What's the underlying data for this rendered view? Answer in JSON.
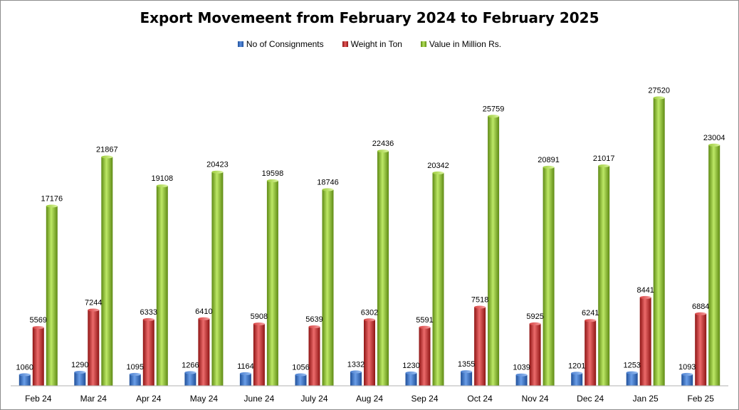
{
  "chart_data": {
    "type": "bar",
    "title": "Export Movemeent from February 2024 to February 2025",
    "xlabel": "",
    "ylabel": "",
    "legend_position": "top",
    "grid": false,
    "categories": [
      "Feb 24",
      "Mar 24",
      "Apr 24",
      "May 24",
      "June 24",
      "July 24",
      "Aug 24",
      "Sep 24",
      "Oct 24",
      "Nov 24",
      "Dec 24",
      "Jan 25",
      "Feb 25"
    ],
    "ylim": [
      0,
      28500
    ],
    "series": [
      {
        "name": "No of Consignments",
        "color": "#3a6fc4",
        "values": [
          1060,
          1290,
          1095,
          1266,
          1164,
          1056,
          1332,
          1230,
          1355,
          1039,
          1201,
          1253,
          1093
        ]
      },
      {
        "name": "Weight in Ton",
        "color": "#cc2a2a",
        "values": [
          5569,
          7244,
          6333,
          6410,
          5908,
          5639,
          6302,
          5591,
          7518,
          5925,
          6241,
          8441,
          6884
        ]
      },
      {
        "name": "Value in Million Rs.",
        "color": "#8cbf2a",
        "values": [
          17176,
          21867,
          19108,
          20423,
          19598,
          18746,
          22436,
          20342,
          25759,
          20891,
          21017,
          27520,
          23004
        ]
      }
    ]
  }
}
